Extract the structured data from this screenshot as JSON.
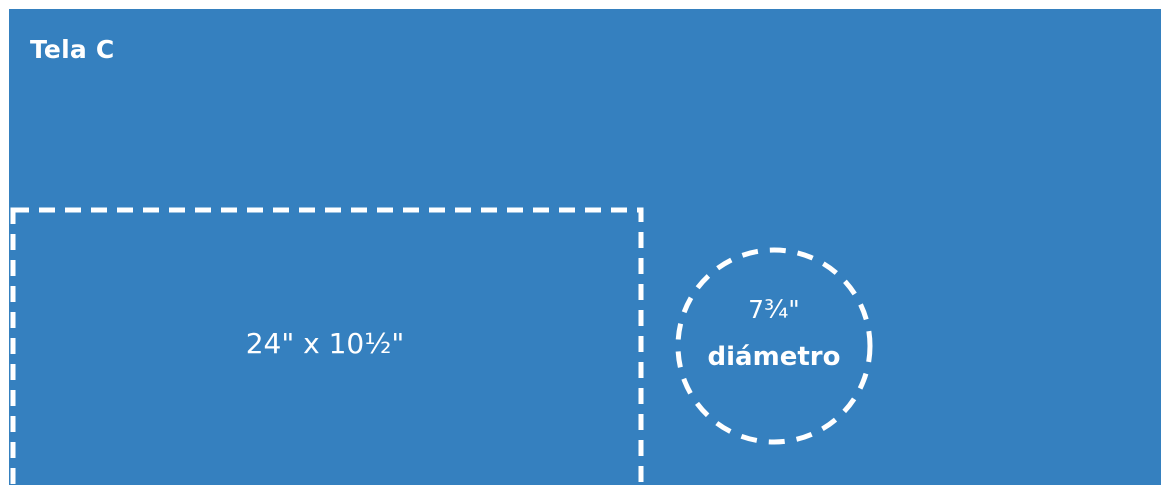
{
  "title": "Tela C",
  "rectangle": {
    "label": "24\" x 10½\""
  },
  "circle": {
    "dimension": "7¾\"",
    "label": "diámetro"
  },
  "colors": {
    "background": "#3580bf",
    "line": "#ffffff",
    "text": "#ffffff"
  }
}
